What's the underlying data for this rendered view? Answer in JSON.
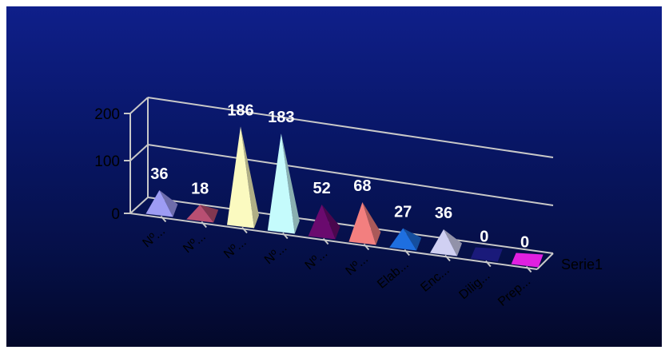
{
  "chart_data": {
    "type": "bar",
    "style": "3d-pyramid",
    "categories": [
      "Nº...",
      "Nº...",
      "Nº...",
      "Nº...",
      "Nº...",
      "Nº...",
      "Elab...",
      "Enc...",
      "Dilig...",
      "Prep..."
    ],
    "series": [
      {
        "name": "Serie1",
        "values": [
          36,
          18,
          186,
          183,
          52,
          68,
          27,
          36,
          0,
          0
        ],
        "colors": [
          "#9d9cf4",
          "#b84f72",
          "#fbfac0",
          "#c5fbfc",
          "#6a0a6e",
          "#f37f7f",
          "#1e6fe0",
          "#d0d0f2",
          "#1a1a7a",
          "#e020e0"
        ]
      }
    ],
    "data_labels": [
      "36",
      "18",
      "186",
      "183",
      "52",
      "68",
      "27",
      "36",
      "0",
      "0"
    ],
    "y_ticks": [
      "0",
      "100",
      "200"
    ],
    "ylim": [
      0,
      200
    ],
    "grid": true,
    "legend": "right",
    "background": "#081665"
  }
}
